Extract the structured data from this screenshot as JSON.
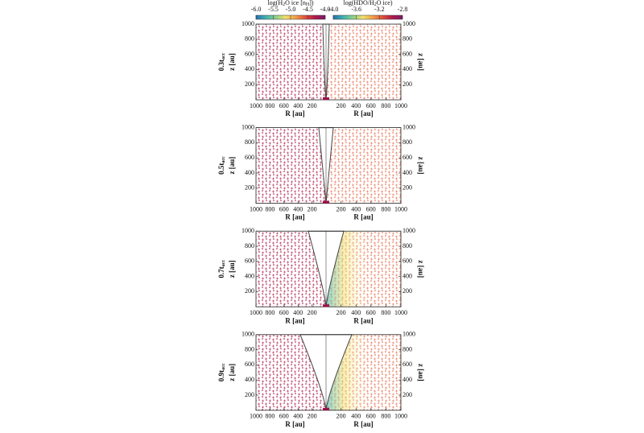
{
  "chart_data": {
    "type": "scatter",
    "colorbars": [
      {
        "title_parts": [
          "log(H",
          "2",
          "O ice [n",
          "H",
          "])"
        ],
        "ticks": [
          -6.0,
          -5.5,
          -5.0,
          -4.5,
          -4.0
        ],
        "tick_labels": [
          "-6.0",
          "-5.5",
          "-5.0",
          "-4.5",
          "-4.0"
        ],
        "lim": [
          -6.0,
          -4.0
        ],
        "colors": [
          "#2a6fb5",
          "#3fb3b0",
          "#8fd08a",
          "#f2e06a",
          "#f2a04a",
          "#e0503c",
          "#b0184a",
          "#7a1a6a"
        ]
      },
      {
        "title_parts": [
          "log(HDO/H",
          "2",
          "O ice)"
        ],
        "ticks": [
          -4.0,
          -3.6,
          -3.2,
          -2.8
        ],
        "tick_labels": [
          "-4.0",
          "-3.6",
          "-3.2",
          "-2.8"
        ],
        "lim": [
          -4.0,
          -2.8
        ],
        "colors": [
          "#2a6fb5",
          "#3fb3b0",
          "#8fd08a",
          "#f2e06a",
          "#f2a04a",
          "#e0503c",
          "#b0184a",
          "#7a1a6a"
        ]
      }
    ],
    "left_xlim": [
      1000,
      0
    ],
    "left_xticks": [
      1000,
      800,
      600,
      400,
      200
    ],
    "right_xlim": [
      0,
      1000
    ],
    "right_xticks": [
      200,
      400,
      600,
      800,
      1000
    ],
    "ylim": [
      0,
      1000
    ],
    "yticks": [
      200,
      400,
      600,
      800,
      1000
    ],
    "xlabel": "R [au]",
    "ylabel": "z [au]",
    "panels": [
      {
        "label": "0.3t",
        "label_sub": "acc"
      },
      {
        "label": "0.5t",
        "label_sub": "acc"
      },
      {
        "label": "0.7t",
        "label_sub": "acc"
      },
      {
        "label": "0.9t",
        "label_sub": "acc"
      }
    ]
  }
}
